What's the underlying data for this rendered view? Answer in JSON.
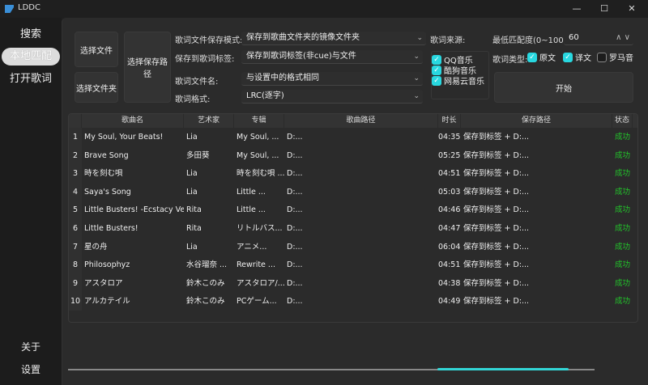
{
  "window": {
    "title": "LDDC",
    "minimize": "—",
    "maximize": "☐",
    "close": "✕"
  },
  "sidebar": {
    "items": [
      {
        "label": "搜索"
      },
      {
        "label": "本地匹配",
        "active": true
      },
      {
        "label": "打开歌词"
      }
    ],
    "bottom": [
      {
        "label": "关于"
      },
      {
        "label": "设置"
      }
    ]
  },
  "controls": {
    "select_file": "选择文件",
    "select_folder": "选择文件夹",
    "select_save_path": "选择保存路径",
    "save_mode_label": "歌词文件保存模式:",
    "save_mode_value": "保存到歌曲文件夹的镜像文件夹",
    "save_tag_label": "保存到歌词标签:",
    "save_tag_value": "保存到歌词标签(非cue)与文件",
    "filename_label": "歌词文件名:",
    "filename_value": "与设置中的格式相同",
    "format_label": "歌词格式:",
    "format_value": "LRC(逐字)",
    "source_label": "歌词来源:",
    "sources": [
      {
        "label": "QQ音乐",
        "checked": true
      },
      {
        "label": "酷狗音乐",
        "checked": true
      },
      {
        "label": "网易云音乐",
        "checked": true
      }
    ],
    "min_score_label": "最低匹配度(0~100):",
    "min_score_value": "60",
    "lyric_type_label": "歌词类型:",
    "lyric_types": [
      {
        "label": "原文",
        "checked": true
      },
      {
        "label": "译文",
        "checked": true
      },
      {
        "label": "罗马音",
        "checked": false
      }
    ],
    "start": "开始"
  },
  "table": {
    "headers": [
      "歌曲名",
      "艺术家",
      "专辑",
      "歌曲路径",
      "时长",
      "保存路径",
      "状态"
    ],
    "rows": [
      {
        "n": "1",
        "song": "My Soul, Your Beats!",
        "artist": "Lia",
        "album": "My Soul, ...",
        "path": "D:...",
        "dur": "04:35",
        "save": "保存到标签 + D:...",
        "status": "成功"
      },
      {
        "n": "2",
        "song": "Brave Song",
        "artist": "多田葵",
        "album": "My Soul, ...",
        "path": "D:...",
        "dur": "05:25",
        "save": "保存到标签 + D:...",
        "status": "成功"
      },
      {
        "n": "3",
        "song": "時を刻む唄",
        "artist": "Lia",
        "album": "時を刻む唄 ...",
        "path": "D:...",
        "dur": "04:51",
        "save": "保存到标签 + D:...",
        "status": "成功"
      },
      {
        "n": "4",
        "song": "Saya's Song",
        "artist": "Lia",
        "album": "Little ...",
        "path": "D:...",
        "dur": "05:03",
        "save": "保存到标签 + D:...",
        "status": "成功"
      },
      {
        "n": "5",
        "song": "Little Busters! -Ecstacy Ver.-",
        "artist": "Rita",
        "album": "Little ...",
        "path": "D:...",
        "dur": "04:46",
        "save": "保存到标签 + D:...",
        "status": "成功"
      },
      {
        "n": "6",
        "song": "Little Busters!",
        "artist": "Rita",
        "album": "リトルバス...",
        "path": "D:...",
        "dur": "04:47",
        "save": "保存到标签 + D:...",
        "status": "成功"
      },
      {
        "n": "7",
        "song": "星の舟",
        "artist": "Lia",
        "album": "アニメ...",
        "path": "D:...",
        "dur": "06:04",
        "save": "保存到标签 + D:...",
        "status": "成功"
      },
      {
        "n": "8",
        "song": "Philosophyz",
        "artist": "水谷瑠奈 ...",
        "album": "Rewrite ...",
        "path": "D:...",
        "dur": "04:51",
        "save": "保存到标签 + D:...",
        "status": "成功"
      },
      {
        "n": "9",
        "song": "アスタロア",
        "artist": "鈴木このみ",
        "album": "アスタロア/...",
        "path": "D:...",
        "dur": "04:38",
        "save": "保存到标签 + D:...",
        "status": "成功"
      },
      {
        "n": "10",
        "song": "アルカテイル",
        "artist": "鈴木このみ",
        "album": "PCゲーム...",
        "path": "D:...",
        "dur": "04:49",
        "save": "保存到标签 + D:...",
        "status": "成功"
      }
    ]
  },
  "progress": {
    "mode": "indeterminate",
    "color": "#33d6d6"
  }
}
